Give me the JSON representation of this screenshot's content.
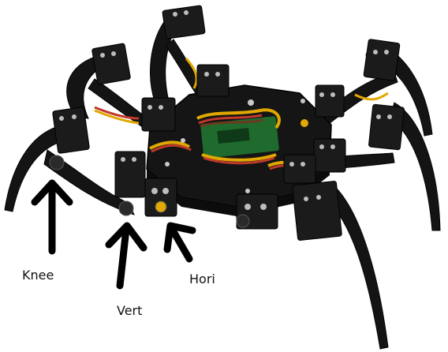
{
  "labels": {
    "knee": "Knee",
    "vert": "Vert",
    "hori": "Hori"
  },
  "colors": {
    "background": "#ffffff",
    "frame": "#141414",
    "servo": "#1b1b1b",
    "wire_red": "#c0392b",
    "wire_yellow": "#e0a800",
    "wire_brown": "#6b3a1e",
    "pcb_green": "#1f6b2e",
    "screw_silver": "#c8c8c8",
    "arrow": "#000000"
  },
  "icons": {
    "robot": "hexapod-robot-photo",
    "arrows": "annotation-arrow"
  }
}
